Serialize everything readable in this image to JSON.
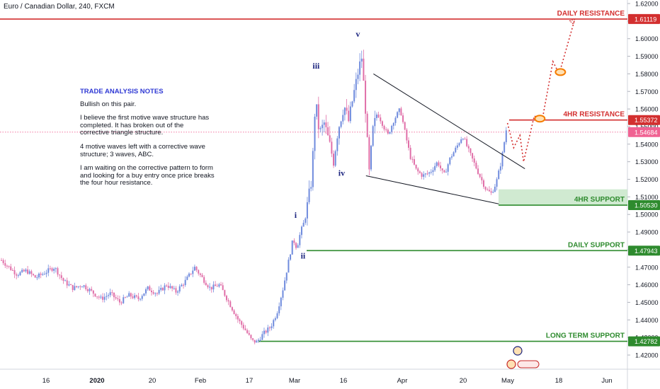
{
  "header": {
    "symbol_title": "Euro / Canadian Dollar, 240, FXCM"
  },
  "notes": {
    "title": "TRADE ANALYSIS NOTES",
    "paragraphs": [
      "Bullish on this pair.",
      "I believe the first motive wave structure has completed.  It has broken out of the corrective triangle structure.",
      "4 motive waves left with a corrective wave structure; 3 waves, ABC.",
      "I am waiting on the corrective pattern to form and looking for a buy entry once price breaks the four hour resistance."
    ]
  },
  "colors": {
    "resistance": "#d32f2f",
    "support": "#2e8b2e",
    "support_zone": "#c8e6c9",
    "candle_up": "#6f8bdd",
    "candle_down": "#e06fa8",
    "wave_label": "#1a237e",
    "current_price": "#f06292"
  },
  "chart_data": {
    "type": "candlestick",
    "title": "Euro / Canadian Dollar, 240, FXCM",
    "y_range": [
      1.4125,
      1.6225
    ],
    "x_tick_labels": [
      "16",
      "2020",
      "20",
      "Feb",
      "17",
      "Mar",
      "16",
      "Apr",
      "20",
      "May",
      "18",
      "Jun"
    ],
    "y_tick_labels": [
      "1.42000",
      "1.43000",
      "1.44000",
      "1.45000",
      "1.46000",
      "1.47000",
      "1.48000",
      "1.49000",
      "1.50000",
      "1.51000",
      "1.52000",
      "1.53000",
      "1.54000",
      "1.55000",
      "1.56000",
      "1.57000",
      "1.58000",
      "1.59000",
      "1.60000",
      "1.61000",
      "1.62000"
    ],
    "y_tick_values": [
      1.42,
      1.43,
      1.44,
      1.45,
      1.46,
      1.47,
      1.48,
      1.49,
      1.5,
      1.51,
      1.52,
      1.53,
      1.54,
      1.55,
      1.56,
      1.57,
      1.58,
      1.59,
      1.6,
      1.61,
      1.62
    ],
    "price_path": [
      [
        0,
        1.474
      ],
      [
        0.012,
        1.47
      ],
      [
        0.025,
        1.466
      ],
      [
        0.04,
        1.468
      ],
      [
        0.055,
        1.464
      ],
      [
        0.07,
        1.467
      ],
      [
        0.085,
        1.47
      ],
      [
        0.1,
        1.462
      ],
      [
        0.115,
        1.458
      ],
      [
        0.13,
        1.46
      ],
      [
        0.145,
        1.456
      ],
      [
        0.16,
        1.452
      ],
      [
        0.175,
        1.455
      ],
      [
        0.19,
        1.45
      ],
      [
        0.205,
        1.454
      ],
      [
        0.22,
        1.452
      ],
      [
        0.235,
        1.458
      ],
      [
        0.25,
        1.455
      ],
      [
        0.265,
        1.46
      ],
      [
        0.28,
        1.456
      ],
      [
        0.295,
        1.462
      ],
      [
        0.31,
        1.47
      ],
      [
        0.322,
        1.464
      ],
      [
        0.335,
        1.458
      ],
      [
        0.35,
        1.46
      ],
      [
        0.365,
        1.45
      ],
      [
        0.38,
        1.44
      ],
      [
        0.392,
        1.434
      ],
      [
        0.402,
        1.428
      ],
      [
        0.41,
        1.4275
      ],
      [
        0.42,
        1.432
      ],
      [
        0.432,
        1.436
      ],
      [
        0.442,
        1.444
      ],
      [
        0.452,
        1.458
      ],
      [
        0.46,
        1.472
      ],
      [
        0.468,
        1.486
      ],
      [
        0.474,
        1.481
      ],
      [
        0.48,
        1.49
      ],
      [
        0.487,
        1.497
      ],
      [
        0.493,
        1.51
      ],
      [
        0.498,
        1.52
      ],
      [
        0.504,
        1.566
      ],
      [
        0.51,
        1.546
      ],
      [
        0.518,
        1.552
      ],
      [
        0.526,
        1.541
      ],
      [
        0.533,
        1.53
      ],
      [
        0.54,
        1.548
      ],
      [
        0.55,
        1.562
      ],
      [
        0.557,
        1.553
      ],
      [
        0.565,
        1.568
      ],
      [
        0.573,
        1.582
      ],
      [
        0.578,
        1.59
      ],
      [
        0.584,
        1.561
      ],
      [
        0.59,
        1.523
      ],
      [
        0.596,
        1.548
      ],
      [
        0.603,
        1.558
      ],
      [
        0.611,
        1.552
      ],
      [
        0.62,
        1.545
      ],
      [
        0.63,
        1.554
      ],
      [
        0.64,
        1.56
      ],
      [
        0.648,
        1.546
      ],
      [
        0.656,
        1.533
      ],
      [
        0.666,
        1.525
      ],
      [
        0.676,
        1.522
      ],
      [
        0.688,
        1.524
      ],
      [
        0.7,
        1.53
      ],
      [
        0.71,
        1.522
      ],
      [
        0.72,
        1.532
      ],
      [
        0.73,
        1.538
      ],
      [
        0.74,
        1.545
      ],
      [
        0.75,
        1.536
      ],
      [
        0.76,
        1.528
      ],
      [
        0.77,
        1.52
      ],
      [
        0.778,
        1.514
      ],
      [
        0.786,
        1.512
      ],
      [
        0.794,
        1.518
      ],
      [
        0.802,
        1.53
      ],
      [
        0.81,
        1.548
      ]
    ],
    "horizontal_levels": [
      {
        "name": "DAILY RESISTANCE",
        "value": 1.61119,
        "label": "1.61119",
        "role": "resistance",
        "from": "left-edge"
      },
      {
        "name": "4HR RESISTANCE",
        "value": 1.55372,
        "label": "1.55372",
        "role": "resistance",
        "from": "current"
      },
      {
        "name": "4HR SUPPORT",
        "value": 1.5053,
        "label": "1.50530",
        "role": "support",
        "from": "triangle"
      },
      {
        "name": "DAILY SUPPORT",
        "value": 1.47943,
        "label": "1.47943",
        "role": "support",
        "from": "wave-ii"
      },
      {
        "name": "LONG TERM SUPPORT",
        "value": 1.42782,
        "label": "1.42782",
        "role": "support",
        "from": "feb-low"
      }
    ],
    "current_price": {
      "value": 1.54684,
      "label": "1.54684"
    },
    "support_zone": {
      "from": 1.5053,
      "to": 1.5143
    },
    "wave_labels": [
      {
        "text": "i",
        "x": 0.472,
        "y": 1.498
      },
      {
        "text": "ii",
        "x": 0.484,
        "y": 1.475
      },
      {
        "text": "iii",
        "x": 0.505,
        "y": 1.583
      },
      {
        "text": "iv",
        "x": 0.546,
        "y": 1.522
      },
      {
        "text": "v",
        "x": 0.572,
        "y": 1.601
      }
    ],
    "triangle": {
      "upper": [
        [
          0.597,
          1.58
        ],
        [
          0.84,
          1.526
        ]
      ],
      "lower": [
        [
          0.585,
          1.522
        ],
        [
          0.798,
          1.506
        ]
      ]
    },
    "projection_path": [
      [
        0.812,
        1.552
      ],
      [
        0.822,
        1.538
      ],
      [
        0.832,
        1.545
      ],
      [
        0.838,
        1.53
      ],
      [
        0.855,
        1.556
      ],
      [
        0.868,
        1.554
      ],
      [
        0.885,
        1.587
      ],
      [
        0.895,
        1.58
      ],
      [
        0.92,
        1.611
      ]
    ],
    "target_markers": [
      {
        "x": 0.864,
        "y": 1.5545
      },
      {
        "x": 0.897,
        "y": 1.581
      }
    ],
    "grid": false,
    "legend": "none"
  }
}
